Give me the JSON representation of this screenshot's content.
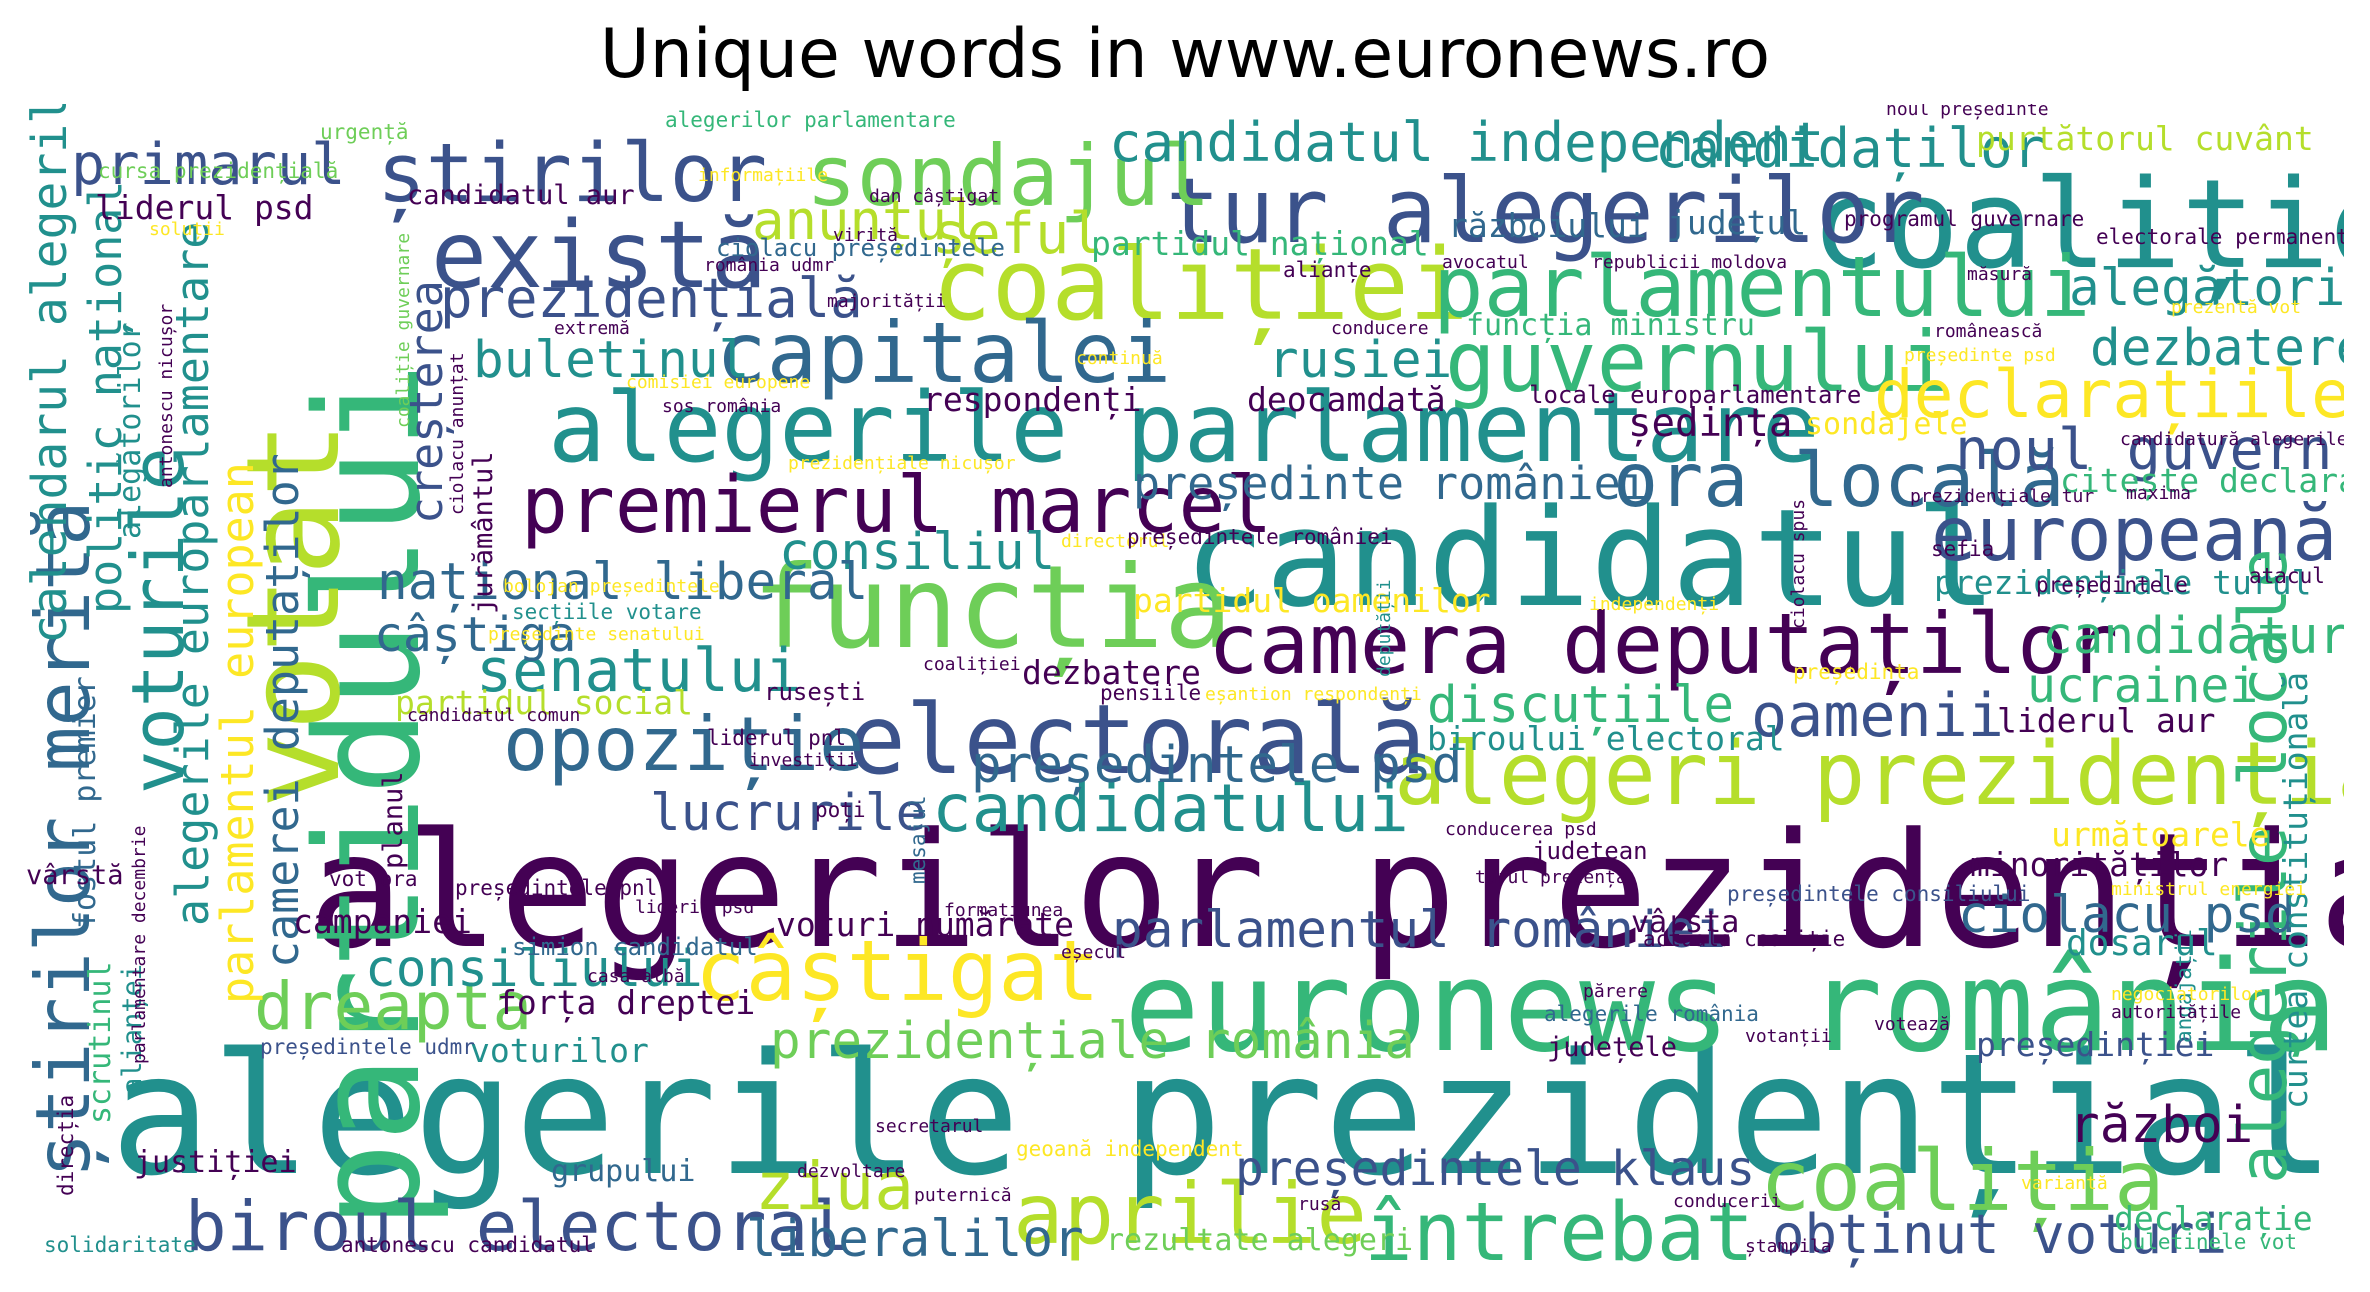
{
  "title": "Unique words in www.euronews.ro",
  "palette": {
    "dark_purple": "#440154",
    "indigo": "#3b528b",
    "blue_teal": "#31688e",
    "teal": "#21908d",
    "green_teal": "#35b779",
    "green": "#6ece58",
    "lime": "#b5de2b",
    "yellow": "#fde725"
  },
  "words": {
    "w001": "alegerile prezidențiale",
    "w002": "alegerilor prezidențiale",
    "w003": "partidului",
    "w004": "candidatul",
    "w005": "euronews românia",
    "w006": "coaliție",
    "w007": "votat",
    "w008": "funcția",
    "w009": "electorală",
    "w010": "alegeri prezidențiale",
    "w011": "alegerile parlamentare",
    "w012": "coaliției",
    "w013": "tur alegerilor",
    "w014": "camera deputaților",
    "w015": "există",
    "w016": "știrilor",
    "w017": "sondajul",
    "w018": "parlamentului",
    "w019": "guvernului",
    "w020": "capitalei",
    "w021": "premierul marcel",
    "w022": "câștigat",
    "w023": "aprilie",
    "w024": "coaliția",
    "w025": "întrebat",
    "w026": "biroul electoral",
    "w027": "știrilor merită",
    "w028": "europeană",
    "w029": "opoziție",
    "w030": "voturile",
    "w031": "ora locală",
    "w032": "alegerile locale",
    "w033": "declarațiile",
    "w034": "dreapta",
    "w035": "candidatului",
    "w036": "senatului",
    "w037": "oamenii",
    "w038": "noul guvern",
    "w039": "ziua",
    "w040": "primarul",
    "w041": "candidatul independent",
    "w042": "candidaților",
    "w043": "anunțul",
    "w044": "șeful",
    "w045": "prezidențială",
    "w046": "buletinul",
    "w047": "rusiei",
    "w048": "dezbaterea",
    "w049": "alegătorii",
    "w050": "consiliul",
    "w051": "național liberal",
    "w052": "câștiga",
    "w053": "consiliului",
    "w054": "ciolacu psd",
    "w055": "candidatură",
    "w056": "ucrainei",
    "w057": "discuțiile",
    "w058": "președintele psd",
    "w059": "lucrurile",
    "w060": "parlamentul româniei",
    "w061": "prezidențiale românia",
    "w062": "președintele klaus",
    "w063": "obținut voturi",
    "w064": "liberalilor",
    "w065": "război",
    "w066": "președinte româniei",
    "w067": "calendarul alegerilor",
    "w068": "politic național",
    "w069": "alegerile europarlamentare",
    "w070": "parlamentul european",
    "w071": "camerei deputaților",
    "w072": "creșterea",
    "w073": "purtătorul cuvânt",
    "w074": "liderul psd",
    "w075": "candidatul aur",
    "w076": "ciolacu președintele",
    "w077": "partidul național",
    "w078": "războiului",
    "w079": "județul",
    "w080": "funcția ministru",
    "w081": "respondenți",
    "w082": "deocamdată",
    "w083": "ședința",
    "w084": "sondajele",
    "w085": "prezidențiale turul",
    "w086": "citește declarațiile",
    "w087": "partidul oamenilor",
    "w088": "partidul social",
    "w089": "biroului electoral",
    "w090": "liderul aur",
    "w091": "curtea constituțională",
    "w092": "următoarele",
    "w093": "minorităților",
    "w094": "voturi numărate",
    "w095": "vârsta",
    "w096": "dosarul",
    "w097": "forța dreptei",
    "w098": "voturilor",
    "w099": "campaniei",
    "w100": "președinției",
    "w101": "județele",
    "w102": "justiției",
    "w103": "grupului",
    "w104": "rezultate alegeri",
    "w105": "declarație",
    "w106": "fostul premier",
    "w107": "alegătorilor",
    "w108": "scrutinul",
    "w109": "alianței",
    "w110": "vârstă",
    "w111": "jurământul",
    "w112": "planul",
    "w113": "alegerilor parlamentare",
    "w114": "urgență",
    "w115": "cursa prezidențială",
    "w116": "noul președinte",
    "w117": "programul guvernare",
    "w118": "electorale permanente",
    "w119": "președintele pnl",
    "w120": "simion candidatul",
    "w121": "președintele consiliului",
    "w122": "antonescu candidatul",
    "w123": "solidaritate",
    "w124": "buletinele vot",
    "w125": "ștampila",
    "w126": "conducerii",
    "w127": "variantă",
    "w128": "secretarul",
    "w129": "dezvoltare",
    "w130": "puternică",
    "w131": "geoană independent",
    "w132": "președintele udmr",
    "w133": "vot ora",
    "w134": "dezbatere",
    "w135": "pensiile",
    "w136": "rusești",
    "w137": "secțiile votare",
    "w138": "președinte senatului",
    "w139": "liderul pnl",
    "w140": "investiții",
    "w141": "poți",
    "w142": "mesajul",
    "w143": "județean",
    "w144": "turul prezența",
    "w145": "conducerea psd",
    "w146": "alegerile românia",
    "w147": "votanții",
    "w148": "votează",
    "w149": "angajații",
    "w150": "negociatorilor",
    "w151": "autoritățile",
    "w152": "ministrul energiei",
    "w153": "actuala coaliție",
    "w154": "eșecul",
    "w155": "părere",
    "w156": "formațiunea",
    "w157": "liderii psd",
    "w158": "casa albă",
    "w159": "directorul",
    "w160": "eșantion respondenți",
    "w161": "președinta",
    "w162": "sefia",
    "w163": "atacul",
    "w164": "independenți",
    "w165": "coaliției",
    "w166": "extremă",
    "w167": "majorității",
    "w168": "continuă",
    "w169": "conducere",
    "w170": "românească",
    "w171": "președinte psd",
    "w172": "prezentă vot",
    "w173": "candidatură alegerile",
    "w174": "președintele româniei",
    "w175": "locale europarlamentare",
    "w176": "comisiei europene",
    "w177": "sos românia",
    "w178": "prezidențiale nicușor",
    "w179": "soluții",
    "w180": "informațiile",
    "w181": "dan câștigat",
    "w182": "avocatul",
    "w183": "republicii moldova",
    "w184": "alianțe",
    "w185": "măsură",
    "w186": "românia udmr",
    "w187": "virită",
    "w188": "coaliție guvernare",
    "w189": "antonescu nicușor",
    "w190": "ciolacu anunțat",
    "w191": "parlamentare decembrie",
    "w192": "direcția",
    "w193": "bolojan președintele",
    "w194": "deputății",
    "w195": "președintele",
    "w196": "ciolacu spus",
    "w197": "maxima",
    "w198": "prezidențiale tur",
    "w199": "candidatul comun",
    "w200": "rusă"
  }
}
